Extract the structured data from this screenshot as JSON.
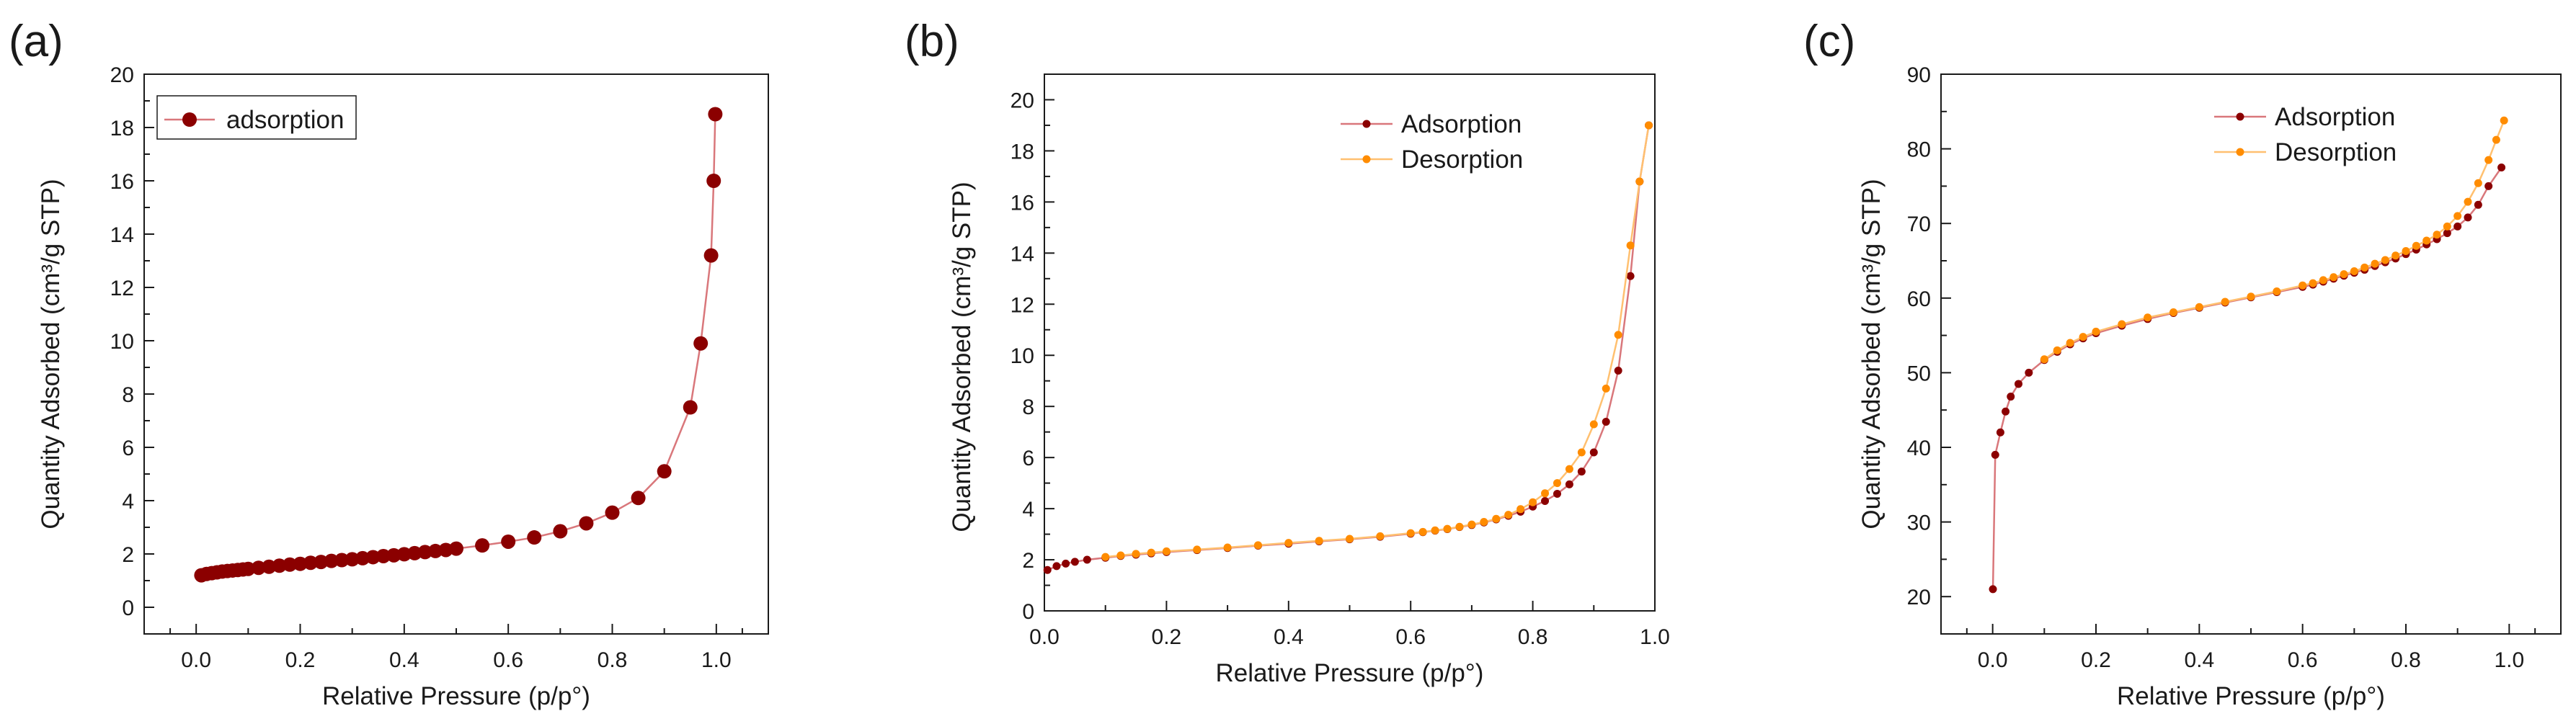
{
  "colors": {
    "adsorption_marker": "#8b0000",
    "adsorption_line": "#d9777b",
    "desorption_marker": "#ff8c00",
    "desorption_line": "#ffc070",
    "axis": "#1a1a1a"
  },
  "chart_data": [
    {
      "type": "line",
      "panel_label": "(a)",
      "xlabel": "Relative Pressure (p/p°)",
      "ylabel": "Quantity Adsorbed (cm³/g STP)",
      "xlim": [
        -0.1,
        1.1
      ],
      "ylim": [
        -1,
        20
      ],
      "x_ticks": [
        0.0,
        0.2,
        0.4,
        0.6,
        0.8,
        1.0
      ],
      "x_tick_labels": [
        "0.0",
        "0.2",
        "0.4",
        "0.6",
        "0.8",
        "1.0"
      ],
      "y_ticks": [
        0,
        2,
        4,
        6,
        8,
        10,
        12,
        14,
        16,
        18,
        20
      ],
      "y_tick_labels": [
        "0",
        "2",
        "4",
        "6",
        "8",
        "10",
        "12",
        "14",
        "16",
        "18",
        "20"
      ],
      "legend_position": "top-left",
      "legend_box": true,
      "series": [
        {
          "name": "adsorption",
          "role": "adsorption",
          "marker_size": "large",
          "x": [
            0.01,
            0.02,
            0.03,
            0.04,
            0.05,
            0.06,
            0.07,
            0.08,
            0.09,
            0.1,
            0.12,
            0.14,
            0.16,
            0.18,
            0.2,
            0.22,
            0.24,
            0.26,
            0.28,
            0.3,
            0.32,
            0.34,
            0.36,
            0.38,
            0.4,
            0.42,
            0.44,
            0.46,
            0.48,
            0.5,
            0.55,
            0.6,
            0.65,
            0.7,
            0.75,
            0.8,
            0.85,
            0.9,
            0.95,
            0.97,
            0.99,
            0.995,
            0.998
          ],
          "y": [
            1.2,
            1.25,
            1.28,
            1.31,
            1.34,
            1.36,
            1.38,
            1.4,
            1.42,
            1.44,
            1.48,
            1.52,
            1.56,
            1.6,
            1.63,
            1.67,
            1.7,
            1.74,
            1.77,
            1.8,
            1.84,
            1.88,
            1.92,
            1.95,
            1.99,
            2.03,
            2.07,
            2.11,
            2.15,
            2.2,
            2.32,
            2.46,
            2.62,
            2.85,
            3.15,
            3.55,
            4.1,
            5.1,
            7.5,
            9.9,
            13.2,
            16.0,
            18.5
          ]
        }
      ]
    },
    {
      "type": "line",
      "panel_label": "(b)",
      "xlabel": "Relative Pressure (p/p°)",
      "ylabel": "Quantity Adsorbed (cm³/g STP)",
      "xlim": [
        0.0,
        1.0
      ],
      "ylim": [
        0,
        21
      ],
      "x_ticks": [
        0.0,
        0.2,
        0.4,
        0.6,
        0.8,
        1.0
      ],
      "x_tick_labels": [
        "0.0",
        "0.2",
        "0.4",
        "0.6",
        "0.8",
        "1.0"
      ],
      "y_ticks": [
        0,
        2,
        4,
        6,
        8,
        10,
        12,
        14,
        16,
        18,
        20
      ],
      "y_tick_labels": [
        "0",
        "2",
        "4",
        "6",
        "8",
        "10",
        "12",
        "14",
        "16",
        "18",
        "20"
      ],
      "legend_position": "top-right",
      "legend_box": false,
      "series": [
        {
          "name": "Adsorption",
          "role": "adsorption",
          "marker_size": "small",
          "x": [
            0.005,
            0.02,
            0.035,
            0.05,
            0.07,
            0.1,
            0.125,
            0.15,
            0.175,
            0.2,
            0.25,
            0.3,
            0.35,
            0.4,
            0.45,
            0.5,
            0.55,
            0.6,
            0.62,
            0.64,
            0.66,
            0.68,
            0.7,
            0.72,
            0.74,
            0.76,
            0.78,
            0.8,
            0.82,
            0.84,
            0.86,
            0.88,
            0.9,
            0.92,
            0.94,
            0.96,
            0.975,
            0.99
          ],
          "y": [
            1.6,
            1.75,
            1.85,
            1.92,
            2.0,
            2.08,
            2.15,
            2.2,
            2.25,
            2.3,
            2.38,
            2.46,
            2.55,
            2.63,
            2.72,
            2.8,
            2.9,
            3.02,
            3.08,
            3.14,
            3.2,
            3.28,
            3.36,
            3.46,
            3.58,
            3.72,
            3.88,
            4.08,
            4.3,
            4.58,
            4.95,
            5.45,
            6.2,
            7.4,
            9.4,
            13.1,
            16.8,
            19.0
          ]
        },
        {
          "name": "Desorption",
          "role": "desorption",
          "marker_size": "small",
          "x": [
            0.99,
            0.975,
            0.96,
            0.94,
            0.92,
            0.9,
            0.88,
            0.86,
            0.84,
            0.82,
            0.8,
            0.78,
            0.76,
            0.74,
            0.72,
            0.7,
            0.68,
            0.66,
            0.64,
            0.62,
            0.6,
            0.55,
            0.5,
            0.45,
            0.4,
            0.35,
            0.3,
            0.25,
            0.2,
            0.175,
            0.15,
            0.125,
            0.1
          ],
          "y": [
            19.0,
            16.8,
            14.3,
            10.8,
            8.7,
            7.3,
            6.2,
            5.55,
            5.0,
            4.6,
            4.25,
            3.98,
            3.76,
            3.6,
            3.48,
            3.38,
            3.29,
            3.21,
            3.15,
            3.09,
            3.04,
            2.92,
            2.82,
            2.74,
            2.66,
            2.57,
            2.48,
            2.4,
            2.33,
            2.28,
            2.23,
            2.17,
            2.11
          ]
        }
      ]
    },
    {
      "type": "line",
      "panel_label": "(c)",
      "xlabel": "Relative Pressure (p/p°)",
      "ylabel": "Quantity Adsorbed (cm³/g STP)",
      "xlim": [
        -0.1,
        1.1
      ],
      "ylim": [
        15,
        90
      ],
      "x_ticks": [
        0.0,
        0.2,
        0.4,
        0.6,
        0.8,
        1.0
      ],
      "x_tick_labels": [
        "0.0",
        "0.2",
        "0.4",
        "0.6",
        "0.8",
        "1.0"
      ],
      "y_ticks": [
        20,
        30,
        40,
        50,
        60,
        70,
        80,
        90
      ],
      "y_tick_labels": [
        "20",
        "30",
        "40",
        "50",
        "60",
        "70",
        "80",
        "90"
      ],
      "legend_position": "top-right",
      "legend_box": false,
      "series": [
        {
          "name": "Adsorption",
          "role": "adsorption",
          "marker_size": "small",
          "x": [
            0.0005,
            0.005,
            0.015,
            0.025,
            0.035,
            0.05,
            0.07,
            0.1,
            0.125,
            0.15,
            0.175,
            0.2,
            0.25,
            0.3,
            0.35,
            0.4,
            0.45,
            0.5,
            0.55,
            0.6,
            0.62,
            0.64,
            0.66,
            0.68,
            0.7,
            0.72,
            0.74,
            0.76,
            0.78,
            0.8,
            0.82,
            0.84,
            0.86,
            0.88,
            0.9,
            0.92,
            0.94,
            0.96,
            0.985
          ],
          "y": [
            21.0,
            39.0,
            42.0,
            44.8,
            46.8,
            48.5,
            50.0,
            51.7,
            52.8,
            53.8,
            54.6,
            55.3,
            56.3,
            57.2,
            58.0,
            58.7,
            59.4,
            60.1,
            60.8,
            61.5,
            61.8,
            62.2,
            62.6,
            63.0,
            63.4,
            63.8,
            64.3,
            64.8,
            65.3,
            65.9,
            66.5,
            67.2,
            67.9,
            68.7,
            69.6,
            70.8,
            72.5,
            75.0,
            77.5
          ]
        },
        {
          "name": "Desorption",
          "role": "desorption",
          "marker_size": "small",
          "x": [
            0.99,
            0.975,
            0.96,
            0.94,
            0.92,
            0.9,
            0.88,
            0.86,
            0.84,
            0.82,
            0.8,
            0.78,
            0.76,
            0.74,
            0.72,
            0.7,
            0.68,
            0.66,
            0.64,
            0.62,
            0.6,
            0.55,
            0.5,
            0.45,
            0.4,
            0.35,
            0.3,
            0.25,
            0.2,
            0.175,
            0.15,
            0.125,
            0.1
          ],
          "y": [
            83.8,
            81.2,
            78.5,
            75.4,
            72.9,
            71.0,
            69.6,
            68.5,
            67.7,
            67.0,
            66.3,
            65.7,
            65.1,
            64.6,
            64.1,
            63.6,
            63.2,
            62.8,
            62.4,
            62.0,
            61.7,
            60.9,
            60.2,
            59.5,
            58.8,
            58.1,
            57.4,
            56.5,
            55.5,
            54.8,
            54.0,
            53.0,
            51.8
          ]
        }
      ]
    }
  ]
}
